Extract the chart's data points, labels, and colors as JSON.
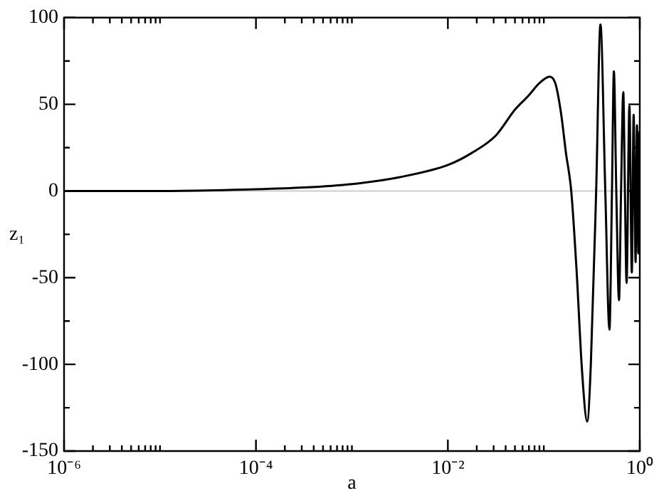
{
  "chart_data": {
    "type": "line",
    "xlabel": "a",
    "ylabel": "z₁",
    "log": "x",
    "xlim": [
      1e-06,
      1
    ],
    "ylim": [
      -150,
      100
    ],
    "xticks": [
      {
        "value": 1e-06,
        "label": "10⁻⁶"
      },
      {
        "value": 2e-06,
        "label": null
      },
      {
        "value": 3e-06,
        "label": null
      },
      {
        "value": 4e-06,
        "label": null
      },
      {
        "value": 5e-06,
        "label": null
      },
      {
        "value": 6e-06,
        "label": null
      },
      {
        "value": 7e-06,
        "label": null
      },
      {
        "value": 8e-06,
        "label": null
      },
      {
        "value": 9e-06,
        "label": null
      },
      {
        "value": 1e-05,
        "label": null
      },
      {
        "value": 0.0001,
        "label": "10⁻⁴"
      },
      {
        "value": 0.0002,
        "label": null
      },
      {
        "value": 0.0003,
        "label": null
      },
      {
        "value": 0.0004,
        "label": null
      },
      {
        "value": 0.0005,
        "label": null
      },
      {
        "value": 0.0006,
        "label": null
      },
      {
        "value": 0.0007,
        "label": null
      },
      {
        "value": 0.0008,
        "label": null
      },
      {
        "value": 0.0009,
        "label": null
      },
      {
        "value": 0.001,
        "label": null
      },
      {
        "value": 0.01,
        "label": "10⁻²"
      },
      {
        "value": 0.02,
        "label": null
      },
      {
        "value": 0.03,
        "label": null
      },
      {
        "value": 0.04,
        "label": null
      },
      {
        "value": 0.05,
        "label": null
      },
      {
        "value": 0.06,
        "label": null
      },
      {
        "value": 0.07,
        "label": null
      },
      {
        "value": 0.08,
        "label": null
      },
      {
        "value": 0.09,
        "label": null
      },
      {
        "value": 0.1,
        "label": null
      },
      {
        "value": 1,
        "label": "10⁰"
      }
    ],
    "yticks": [
      -150,
      {
        "value": -125,
        "label": null
      },
      -100,
      {
        "value": -75,
        "label": null
      },
      -50,
      {
        "value": -25,
        "label": null
      },
      0,
      {
        "value": 25,
        "label": null
      },
      50,
      {
        "value": 75,
        "label": null
      },
      100
    ],
    "grid": false,
    "legend": false,
    "marker": "none",
    "line_style": "solid",
    "ref_lines": [
      {
        "axis": "y",
        "value": 0,
        "color": "#cccccc"
      }
    ],
    "series": [
      {
        "color": "#000000",
        "x": [
          1e-06,
          1e-05,
          0.0001,
          0.000316,
          0.001,
          0.00316,
          0.01,
          0.0178,
          0.0316,
          0.0501,
          0.0692,
          0.0891,
          0.115,
          0.132,
          0.151,
          0.17,
          0.193,
          0.219,
          0.251,
          0.283,
          0.309,
          0.351,
          0.389,
          0.437,
          0.483,
          0.513,
          0.537,
          0.569,
          0.607,
          0.638,
          0.673,
          0.7,
          0.728,
          0.78,
          0.826,
          0.863,
          0.904,
          0.935,
          0.966,
          0.989,
          1
        ],
        "values": [
          0,
          0,
          1,
          2,
          4,
          8,
          15,
          22,
          32,
          47,
          55,
          62,
          66,
          62,
          45,
          22,
          0,
          -45,
          -105,
          -133,
          -100,
          0,
          96,
          0,
          -80,
          0,
          69,
          0,
          -63,
          0,
          57,
          0,
          -53,
          49,
          -47,
          44,
          -41,
          38,
          -36,
          34,
          0
        ]
      }
    ]
  }
}
